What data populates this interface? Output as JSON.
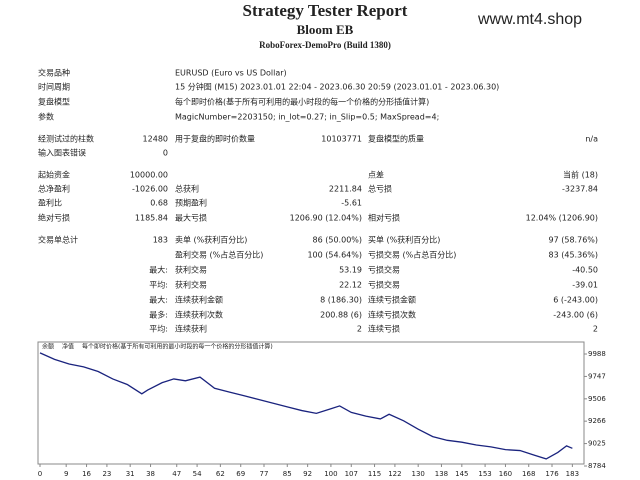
{
  "header": {
    "title": "Strategy Tester Report",
    "subtitle": "Bloom EB",
    "server": "RoboForex-DemoPro (Build 1380)",
    "watermark": "www.mt4.shop"
  },
  "table": {
    "rows": [
      {
        "name1": "交易品种",
        "text": "EURUSD (Euro vs US Dollar)"
      },
      {
        "name1": "时间周期",
        "text": "15 分钟图 (M15) 2023.01.01 22:04 - 2023.06.30 20:59 (2023.01.01 - 2023.06.30)"
      },
      {
        "name1": "复盘模型",
        "text": "每个即时价格(基于所有可利用的最小时段的每一个价格的分形插值计算)"
      },
      {
        "name1": "参数",
        "text": "MagicNumber=2203150; in_lot=0.27; in_Slip=0.5; MaxSpread=4;"
      },
      {
        "name1": "经测试过的柱数",
        "value1": "12480",
        "name2": "用于复盘的即时价数量",
        "value2": "10103771",
        "name3": "复盘模型的质量",
        "value3": "n/a"
      },
      {
        "name1": "输入图表错误",
        "value1": "0"
      },
      {
        "name1": "起始资金",
        "value1": "10000.00",
        "name3": "点差",
        "value3": "当前 (18)"
      },
      {
        "name1": "总净盈利",
        "value1": "-1026.00",
        "name2": "总获利",
        "value2": "2211.84",
        "name3": "总亏损",
        "value3": "-3237.84"
      },
      {
        "name1": "盈利比",
        "value1": "0.68",
        "name2": "预期盈利",
        "value2": "-5.61"
      },
      {
        "name1": "绝对亏损",
        "value1": "1185.84",
        "name2": "最大亏损",
        "value2": "1206.90 (12.04%)",
        "name3": "相对亏损",
        "value3": "12.04% (1206.90)"
      },
      {
        "name1": "交易单总计",
        "value1": "183",
        "name2": "卖单 (%获利百分比)",
        "value2": "86 (50.00%)",
        "name3": "买单 (%获利百分比)",
        "value3": "97 (58.76%)"
      },
      {
        "name2": "盈利交易 (%占总百分比)",
        "value2": "100 (54.64%)",
        "name3": "亏损交易 (%占总百分比)",
        "value3": "83 (45.36%)"
      },
      {
        "value1": "最大:",
        "name2": "获利交易",
        "value2": "53.19",
        "name3": "亏损交易",
        "value3": "-40.50"
      },
      {
        "value1": "平均:",
        "name2": "获利交易",
        "value2": "22.12",
        "name3": "亏损交易",
        "value3": "-39.01"
      },
      {
        "value1": "最大:",
        "name2": "连续获利金额",
        "value2": "8 (186.30)",
        "name3": "连续亏损金额",
        "value3": "6 (-243.00)"
      },
      {
        "value1": "最多:",
        "name2": "连续获利次数",
        "value2": "200.88 (6)",
        "name3": "连续亏损次数",
        "value3": "-243.00 (6)"
      },
      {
        "value1": "平均:",
        "name2": "连续获利",
        "value2": "2",
        "name3": "连续亏损",
        "value3": "2"
      }
    ]
  },
  "chart_data": {
    "type": "line",
    "legend": [
      "余额",
      "净值",
      "每个即时价格(基于所有可利用的最小时段的每一个价格的分形插值计算)"
    ],
    "x": [
      0,
      5,
      10,
      15,
      20,
      25,
      30,
      35,
      37,
      42,
      46,
      50,
      55,
      60,
      65,
      70,
      75,
      80,
      85,
      90,
      95,
      100,
      103,
      107,
      112,
      117,
      120,
      125,
      130,
      135,
      140,
      145,
      150,
      155,
      160,
      165,
      170,
      174,
      178,
      181,
      183
    ],
    "series": [
      {
        "name": "余额",
        "color": "#1a237e",
        "values": [
          10000,
          9930,
          9880,
          9850,
          9800,
          9720,
          9660,
          9560,
          9600,
          9680,
          9720,
          9700,
          9740,
          9620,
          9580,
          9540,
          9500,
          9460,
          9420,
          9380,
          9350,
          9400,
          9430,
          9360,
          9320,
          9290,
          9340,
          9270,
          9180,
          9100,
          9060,
          9040,
          9010,
          8990,
          8960,
          8950,
          8900,
          8860,
          8930,
          9000,
          8974
        ]
      }
    ],
    "xlim": [
      0,
      187
    ],
    "ylim": [
      8784,
      10117
    ],
    "xticks": [
      0,
      9,
      16,
      23,
      31,
      38,
      47,
      54,
      62,
      69,
      77,
      85,
      92,
      100,
      107,
      115,
      122,
      130,
      138,
      145,
      153,
      160,
      168,
      176,
      183
    ],
    "yticks": [
      9988,
      9747,
      9506,
      9266,
      9025,
      8784
    ]
  }
}
